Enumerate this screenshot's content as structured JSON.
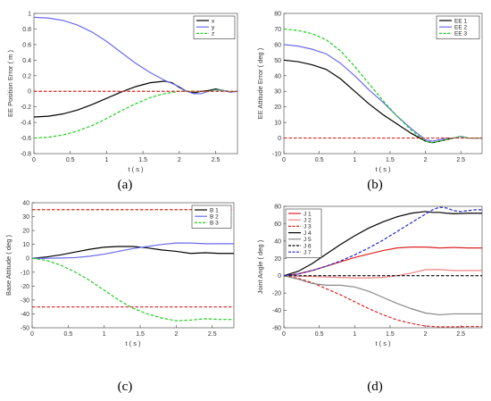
{
  "chart_data": [
    {
      "type": "line",
      "caption": "(a)",
      "xlabel": "t ( s )",
      "ylabel": "EE Position Error ( m )",
      "xlim": [
        0,
        2.8
      ],
      "ylim": [
        -0.8,
        1
      ],
      "xticks": [
        "0",
        "0.5",
        "1",
        "1.5",
        "2",
        "2.5"
      ],
      "yticks": [
        "-0.8",
        "-0.6",
        "-0.4",
        "-0.2",
        "0",
        "0.2",
        "0.4",
        "0.6",
        "0.8",
        "1"
      ],
      "legend_position": "top-right",
      "series": [
        {
          "name": "x",
          "color": "#000000",
          "dash": "solid",
          "x": [
            0,
            0.2,
            0.4,
            0.6,
            0.8,
            1.0,
            1.2,
            1.4,
            1.6,
            1.8,
            1.9,
            2.0,
            2.1,
            2.2,
            2.3,
            2.4,
            2.5,
            2.6,
            2.7,
            2.8
          ],
          "y": [
            -0.33,
            -0.32,
            -0.29,
            -0.24,
            -0.17,
            -0.09,
            -0.01,
            0.06,
            0.11,
            0.13,
            0.11,
            0.05,
            0.0,
            -0.02,
            0.0,
            0.01,
            0.03,
            0.01,
            -0.01,
            0.0
          ]
        },
        {
          "name": "y",
          "color": "#6a6af0",
          "dash": "solid",
          "x": [
            0,
            0.2,
            0.4,
            0.6,
            0.8,
            1.0,
            1.2,
            1.4,
            1.6,
            1.8,
            2.0,
            2.1,
            2.2,
            2.3,
            2.4,
            2.5,
            2.6,
            2.7,
            2.8
          ],
          "y": [
            0.95,
            0.94,
            0.91,
            0.85,
            0.76,
            0.64,
            0.5,
            0.36,
            0.24,
            0.14,
            0.06,
            0.0,
            -0.03,
            -0.03,
            0.0,
            0.02,
            0.01,
            -0.01,
            0.0
          ]
        },
        {
          "name": "z",
          "color": "#22cc22",
          "dash": "dashed",
          "x": [
            0,
            0.2,
            0.4,
            0.6,
            0.8,
            1.0,
            1.2,
            1.4,
            1.6,
            1.8,
            2.0,
            2.2,
            2.4,
            2.5,
            2.6,
            2.7,
            2.8
          ],
          "y": [
            -0.6,
            -0.59,
            -0.56,
            -0.51,
            -0.44,
            -0.35,
            -0.25,
            -0.16,
            -0.08,
            -0.03,
            0.0,
            0.0,
            0.0,
            0.02,
            0.01,
            0.0,
            0.0
          ]
        },
        {
          "name": "",
          "color": "#dd2222",
          "dash": "dashed",
          "x": [
            0,
            2.8
          ],
          "y": [
            0,
            0
          ]
        }
      ]
    },
    {
      "type": "line",
      "caption": "(b)",
      "xlabel": "t ( s )",
      "ylabel": "EE Attitude Error ( deg )",
      "xlim": [
        0,
        2.8
      ],
      "ylim": [
        -10,
        80
      ],
      "xticks": [
        "0",
        "0.5",
        "1",
        "1.5",
        "2",
        "2.5"
      ],
      "yticks": [
        "-10",
        "0",
        "10",
        "20",
        "30",
        "40",
        "50",
        "60",
        "70",
        "80"
      ],
      "legend_position": "top-right",
      "series": [
        {
          "name": "EE 1",
          "color": "#000000",
          "dash": "solid",
          "x": [
            0,
            0.2,
            0.4,
            0.6,
            0.8,
            1.0,
            1.2,
            1.4,
            1.6,
            1.8,
            2.0,
            2.1,
            2.2,
            2.3,
            2.4,
            2.5,
            2.6,
            2.7,
            2.8
          ],
          "y": [
            50,
            49,
            47,
            44,
            38,
            30,
            22,
            15,
            9,
            3,
            -2,
            -3,
            -2,
            -1,
            0,
            1,
            0,
            0,
            0
          ]
        },
        {
          "name": "EE 2",
          "color": "#6a6af0",
          "dash": "solid",
          "x": [
            0,
            0.2,
            0.4,
            0.6,
            0.8,
            1.0,
            1.2,
            1.4,
            1.6,
            1.8,
            2.0,
            2.1,
            2.2,
            2.3,
            2.4,
            2.5,
            2.6,
            2.7,
            2.8
          ],
          "y": [
            60,
            59,
            57,
            54,
            48,
            40,
            31,
            23,
            14,
            6,
            -1,
            -2,
            -1,
            0,
            0,
            1,
            0,
            0,
            0
          ]
        },
        {
          "name": "EE 3",
          "color": "#22cc22",
          "dash": "dashed",
          "x": [
            0,
            0.2,
            0.4,
            0.6,
            0.8,
            1.0,
            1.2,
            1.4,
            1.6,
            1.8,
            2.0,
            2.1,
            2.2,
            2.3,
            2.4,
            2.5,
            2.6,
            2.7,
            2.8
          ],
          "y": [
            70,
            69,
            67,
            63,
            56,
            46,
            35,
            24,
            14,
            5,
            -2,
            -3,
            -2,
            -1,
            0,
            1,
            0,
            0,
            0
          ]
        },
        {
          "name": "",
          "color": "#dd2222",
          "dash": "dashed",
          "x": [
            0,
            2.8
          ],
          "y": [
            0,
            0
          ]
        }
      ]
    },
    {
      "type": "line",
      "caption": "(c)",
      "xlabel": "t ( s )",
      "ylabel": "Base Attitude ( deg )",
      "xlim": [
        0,
        2.8
      ],
      "ylim": [
        -50,
        40
      ],
      "xticks": [
        "0",
        "0.5",
        "1",
        "1.5",
        "2",
        "2.5"
      ],
      "yticks": [
        "-50",
        "-40",
        "-30",
        "-20",
        "-10",
        "0",
        "10",
        "20",
        "30",
        "40"
      ],
      "legend_position": "top-right",
      "series": [
        {
          "name": "B 1",
          "color": "#000000",
          "dash": "solid",
          "x": [
            0,
            0.2,
            0.4,
            0.6,
            0.8,
            1.0,
            1.2,
            1.4,
            1.6,
            1.8,
            2.0,
            2.2,
            2.4,
            2.6,
            2.8
          ],
          "y": [
            0,
            1,
            2.5,
            4.5,
            6.5,
            8,
            8.5,
            8.5,
            7.5,
            6,
            5,
            3.5,
            4,
            3.5,
            3.5
          ]
        },
        {
          "name": "B 2",
          "color": "#6a6af0",
          "dash": "solid",
          "x": [
            0,
            0.2,
            0.4,
            0.6,
            0.8,
            1.0,
            1.2,
            1.4,
            1.6,
            1.8,
            2.0,
            2.2,
            2.4,
            2.6,
            2.8
          ],
          "y": [
            0,
            0,
            0.2,
            0.5,
            1.5,
            3,
            5,
            7,
            8.5,
            10,
            11,
            11,
            10.5,
            10.5,
            10.5
          ]
        },
        {
          "name": "B 3",
          "color": "#22cc22",
          "dash": "dashed",
          "x": [
            0,
            0.2,
            0.4,
            0.6,
            0.8,
            1.0,
            1.2,
            1.4,
            1.6,
            1.8,
            2.0,
            2.2,
            2.4,
            2.6,
            2.8
          ],
          "y": [
            0,
            -1.5,
            -5,
            -10,
            -16,
            -23,
            -30,
            -36,
            -40,
            -43,
            -45,
            -44.5,
            -43.5,
            -44,
            -44
          ]
        },
        {
          "name": "",
          "color": "#dd2222",
          "dash": "dashed",
          "x": [
            0,
            2.8
          ],
          "y": [
            35,
            35
          ]
        },
        {
          "name": "",
          "color": "#dd2222",
          "dash": "dashed",
          "x": [
            0,
            2.8
          ],
          "y": [
            -35,
            -35
          ]
        }
      ]
    },
    {
      "type": "line",
      "caption": "(d)",
      "xlabel": "t ( s )",
      "ylabel": "Joint Angle ( deg )",
      "xlim": [
        0,
        2.8
      ],
      "ylim": [
        -60,
        80
      ],
      "xticks": [
        "0",
        "0.5",
        "1",
        "1.5",
        "2",
        "2.5"
      ],
      "yticks": [
        "-60",
        "-40",
        "-20",
        "0",
        "20",
        "40",
        "60",
        "80"
      ],
      "legend_position": "top-left",
      "series": [
        {
          "name": "J 1",
          "color": "#dd2222",
          "dash": "solid",
          "x": [
            0,
            0.2,
            0.4,
            0.6,
            0.8,
            1.0,
            1.2,
            1.4,
            1.6,
            1.8,
            2.0,
            2.2,
            2.4,
            2.6,
            2.8
          ],
          "y": [
            0,
            2,
            6,
            11,
            16,
            21,
            25,
            29,
            32,
            33,
            33,
            32,
            32.5,
            32,
            32
          ]
        },
        {
          "name": "J 2",
          "color": "#f08080",
          "dash": "solid",
          "x": [
            0,
            0.2,
            0.4,
            0.6,
            0.8,
            1.0,
            1.2,
            1.4,
            1.6,
            1.8,
            2.0,
            2.2,
            2.4,
            2.6,
            2.8
          ],
          "y": [
            0,
            -0.5,
            -1,
            -1.5,
            -2,
            -2.5,
            -2.5,
            -2,
            0,
            3,
            7,
            7,
            6,
            6,
            6
          ]
        },
        {
          "name": "J 3",
          "color": "#dd2222",
          "dash": "dashed",
          "x": [
            0,
            0.2,
            0.4,
            0.6,
            0.8,
            1.0,
            1.2,
            1.4,
            1.6,
            1.8,
            2.0,
            2.2,
            2.4,
            2.6,
            2.8
          ],
          "y": [
            0,
            -3,
            -8,
            -15,
            -22,
            -30,
            -38,
            -45,
            -51,
            -55,
            -58,
            -59,
            -59,
            -58.5,
            -58.5
          ]
        },
        {
          "name": "J 4",
          "color": "#000000",
          "dash": "solid",
          "x": [
            0,
            0.2,
            0.4,
            0.6,
            0.8,
            1.0,
            1.2,
            1.4,
            1.6,
            1.8,
            2.0,
            2.1,
            2.2,
            2.3,
            2.4,
            2.6,
            2.8
          ],
          "y": [
            0,
            5,
            14,
            25,
            36,
            46,
            55,
            62,
            68,
            72,
            74,
            73,
            73,
            72,
            71.5,
            72,
            72
          ]
        },
        {
          "name": "J 5",
          "color": "#888888",
          "dash": "solid",
          "x": [
            0,
            0.2,
            0.4,
            0.6,
            0.8,
            1.0,
            1.2,
            1.4,
            1.6,
            1.8,
            2.0,
            2.2,
            2.4,
            2.6,
            2.8
          ],
          "y": [
            0,
            -4,
            -9,
            -11,
            -11,
            -13,
            -18,
            -25,
            -32,
            -38,
            -43,
            -45,
            -44,
            -44,
            -44
          ]
        },
        {
          "name": "J 6",
          "color": "#000000",
          "dash": "dashed",
          "x": [
            0,
            0.2,
            0.4,
            0.6,
            0.8,
            1.0,
            1.2,
            1.4,
            1.6,
            1.8,
            2.0,
            2.2,
            2.4,
            2.6,
            2.8
          ],
          "y": [
            0,
            0,
            0,
            0,
            0,
            0,
            0,
            0,
            0,
            0,
            0,
            0,
            0,
            0,
            0
          ]
        },
        {
          "name": "J 7",
          "color": "#2222cc",
          "dash": "dashed",
          "x": [
            0,
            0.2,
            0.4,
            0.6,
            0.8,
            1.0,
            1.2,
            1.4,
            1.6,
            1.8,
            2.0,
            2.1,
            2.2,
            2.3,
            2.4,
            2.5,
            2.6,
            2.7,
            2.8
          ],
          "y": [
            0,
            2,
            6,
            11,
            17,
            24,
            32,
            41,
            51,
            61,
            71,
            76,
            79,
            78,
            75,
            74,
            75,
            76,
            76
          ]
        }
      ]
    }
  ]
}
